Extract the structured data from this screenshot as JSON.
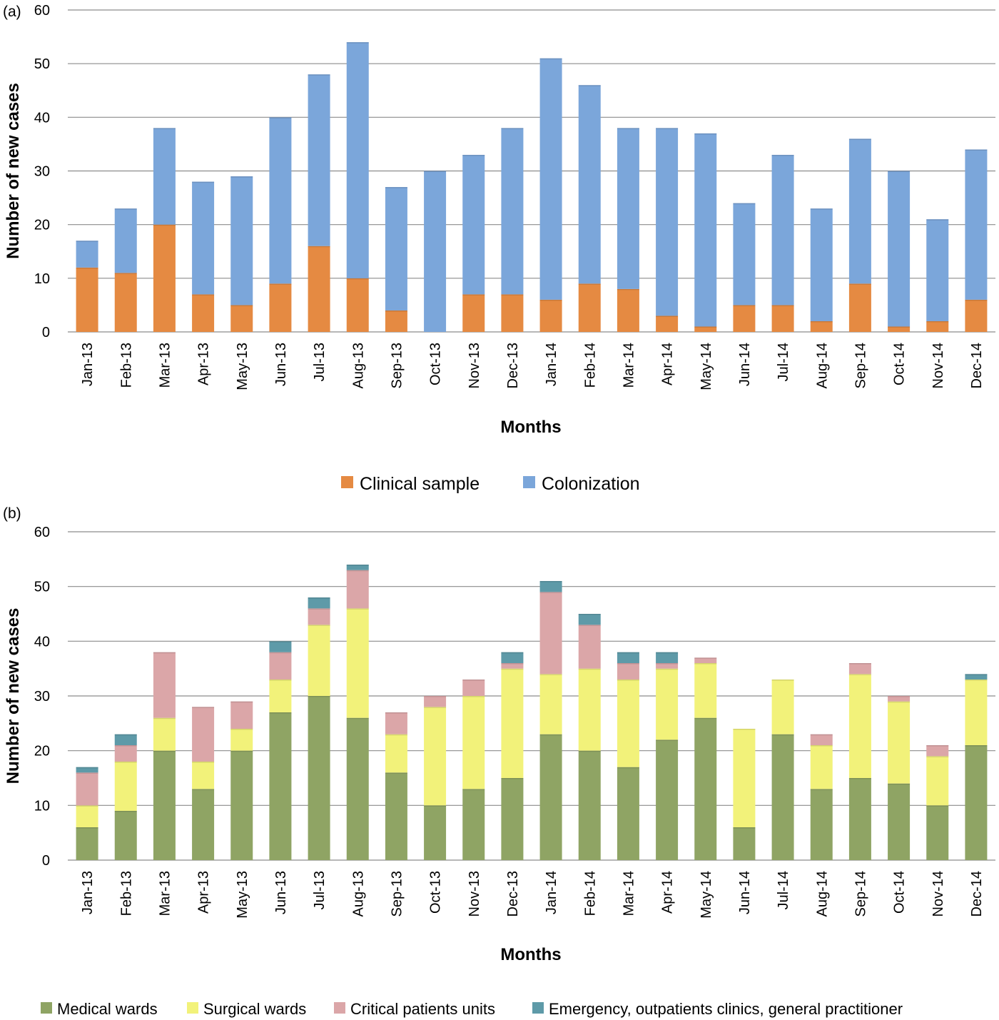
{
  "colors": {
    "clinical": "#E58A42",
    "colonization": "#7BA6DA",
    "medical": "#8FA464",
    "surgical": "#F2F27A",
    "critical": "#DBA6A8",
    "emergency": "#5E9AA8",
    "grid": "#8C8C8C"
  },
  "chart_data": [
    {
      "type": "bar",
      "stacked": true,
      "panel_label": "(a)",
      "xlabel": "Months",
      "ylabel": "Number of new cases",
      "ylim": [
        0,
        60
      ],
      "yticks": [
        "0",
        "10",
        "20",
        "30",
        "40",
        "50",
        "60"
      ],
      "categories": [
        "Jan-13",
        "Feb-13",
        "Mar-13",
        "Apr-13",
        "May-13",
        "Jun-13",
        "Jul-13",
        "Aug-13",
        "Sep-13",
        "Oct-13",
        "Nov-13",
        "Dec-13",
        "Jan-14",
        "Feb-14",
        "Mar-14",
        "Apr-14",
        "May-14",
        "Jun-14",
        "Jul-14",
        "Aug-14",
        "Sep-14",
        "Oct-14",
        "Nov-14",
        "Dec-14"
      ],
      "series": [
        {
          "name": "Clinical sample",
          "values": [
            12,
            11,
            20,
            7,
            5,
            9,
            16,
            10,
            4,
            0,
            7,
            7,
            6,
            9,
            8,
            3,
            1,
            5,
            5,
            2,
            9,
            1,
            2,
            6
          ]
        },
        {
          "name": "Colonization",
          "values": [
            5,
            12,
            18,
            21,
            24,
            31,
            32,
            44,
            23,
            30,
            26,
            31,
            45,
            37,
            30,
            35,
            36,
            19,
            28,
            21,
            27,
            29,
            19,
            28
          ]
        }
      ],
      "legend_position": "bottom"
    },
    {
      "type": "bar",
      "stacked": true,
      "panel_label": "(b)",
      "xlabel": "Months",
      "ylabel": "Number of new cases",
      "ylim": [
        0,
        60
      ],
      "yticks": [
        "0",
        "10",
        "20",
        "30",
        "40",
        "50",
        "60"
      ],
      "categories": [
        "Jan-13",
        "Feb-13",
        "Mar-13",
        "Apr-13",
        "May-13",
        "Jun-13",
        "Jul-13",
        "Aug-13",
        "Sep-13",
        "Oct-13",
        "Nov-13",
        "Dec-13",
        "Jan-14",
        "Feb-14",
        "Mar-14",
        "Apr-14",
        "May-14",
        "Jun-14",
        "Jul-14",
        "Aug-14",
        "Sep-14",
        "Oct-14",
        "Nov-14",
        "Dec-14"
      ],
      "series": [
        {
          "name": "Medical wards",
          "values": [
            6,
            9,
            20,
            13,
            20,
            27,
            30,
            26,
            16,
            10,
            13,
            15,
            23,
            20,
            17,
            22,
            26,
            6,
            23,
            13,
            15,
            14,
            10,
            21
          ]
        },
        {
          "name": "Surgical wards",
          "values": [
            4,
            9,
            6,
            5,
            4,
            6,
            13,
            20,
            7,
            18,
            17,
            20,
            11,
            15,
            16,
            13,
            10,
            18,
            10,
            8,
            19,
            15,
            9,
            12
          ]
        },
        {
          "name": "Critical patients units",
          "values": [
            6,
            3,
            12,
            10,
            5,
            5,
            3,
            7,
            4,
            2,
            3,
            1,
            15,
            8,
            3,
            1,
            1,
            0,
            0,
            2,
            2,
            1,
            2,
            0
          ]
        },
        {
          "name": "Emergency, outpatients clinics, general practitioner",
          "values": [
            1,
            2,
            0,
            0,
            0,
            2,
            2,
            1,
            0,
            0,
            0,
            2,
            2,
            2,
            2,
            2,
            0,
            0,
            0,
            0,
            0,
            0,
            0,
            1
          ]
        }
      ],
      "legend_position": "bottom"
    }
  ]
}
